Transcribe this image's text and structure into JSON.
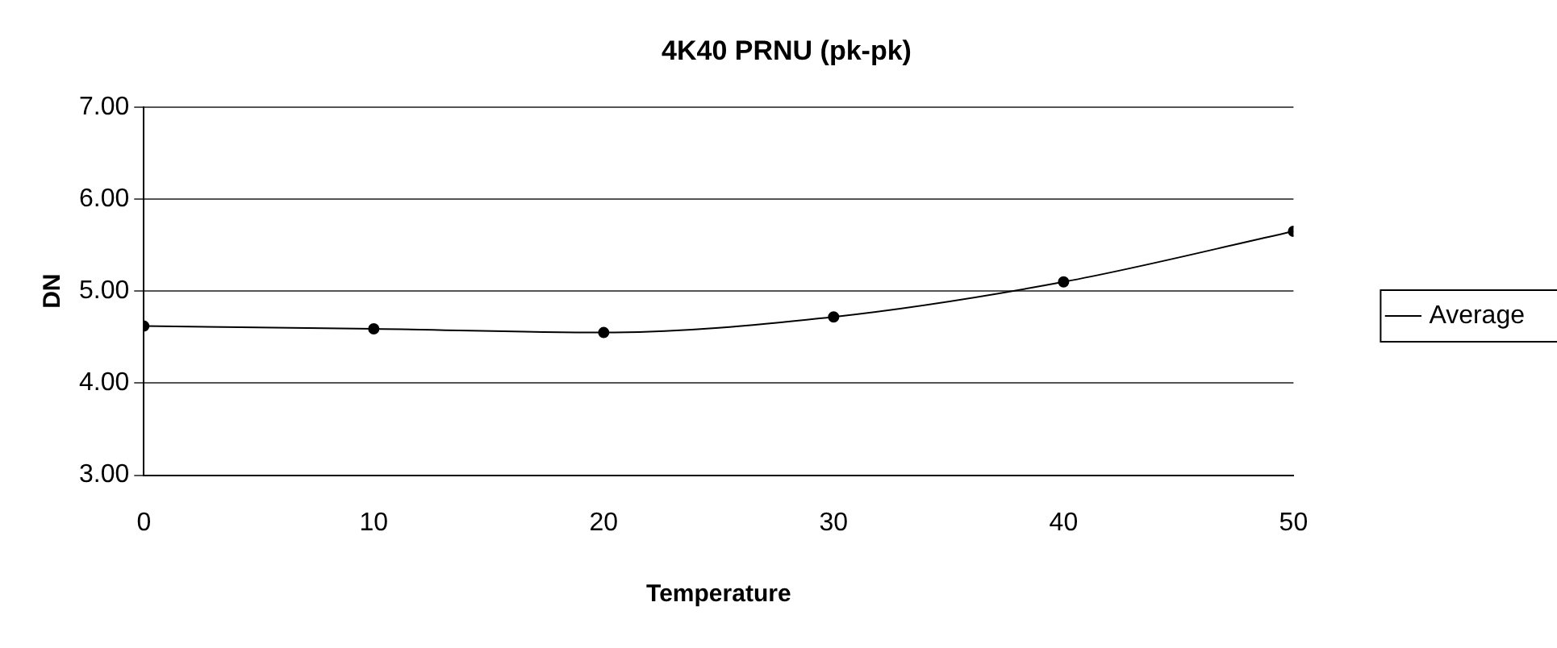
{
  "chart_data": {
    "type": "line",
    "title": "4K40 PRNU (pk-pk)",
    "xlabel": "Temperature",
    "ylabel": "DN",
    "x": [
      0,
      10,
      20,
      30,
      40,
      50
    ],
    "series": [
      {
        "name": "Average",
        "color": "#000000",
        "values": [
          4.62,
          4.59,
          4.55,
          4.72,
          5.1,
          5.65
        ]
      }
    ],
    "xlim": [
      0,
      50
    ],
    "xticks": [
      0,
      10,
      20,
      30,
      40,
      50
    ],
    "ylim": [
      3,
      7
    ],
    "yticks": [
      {
        "value": 3,
        "label": "3.00"
      },
      {
        "value": 4,
        "label": "4.00"
      },
      {
        "value": 5,
        "label": "5.00"
      },
      {
        "value": 6,
        "label": "6.00"
      },
      {
        "value": 7,
        "label": "7.00"
      }
    ],
    "grid": "y",
    "legend": "right",
    "marker": "circle",
    "line_style": "solid"
  }
}
